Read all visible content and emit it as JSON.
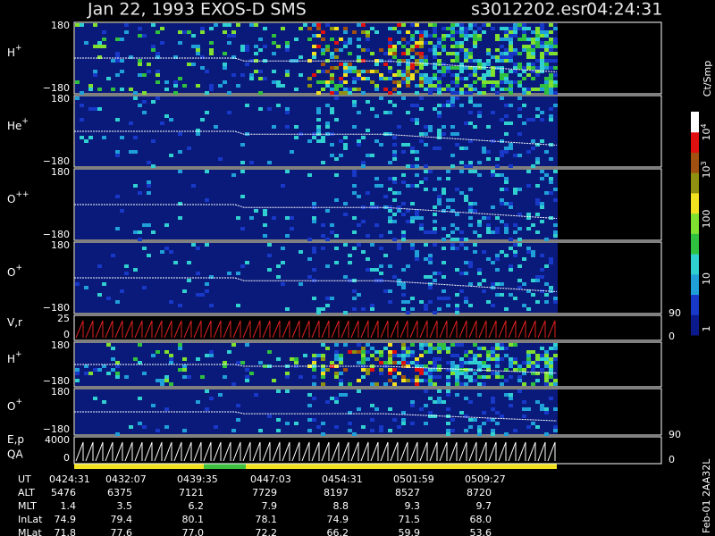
{
  "header": {
    "title": "Jan 22, 1993   EXOS-D SMS",
    "file": "s3012202.esr",
    "time": "04:24:31"
  },
  "panels": [
    {
      "label": "H",
      "sup": "+",
      "ticks": [
        "180",
        "−180"
      ]
    },
    {
      "label": "He",
      "sup": "+",
      "ticks": [
        "180",
        "−180"
      ]
    },
    {
      "label": "O",
      "sup": "++",
      "ticks": [
        "180",
        "−180"
      ]
    },
    {
      "label": "O",
      "sup": "+",
      "ticks": [
        "180",
        "−180"
      ]
    },
    {
      "label": "V,r",
      "ticks": [
        "25",
        "0"
      ],
      "right_ticks": [
        "90",
        "0"
      ]
    },
    {
      "label": "H",
      "sup": "+",
      "ticks": [
        "180",
        "−180"
      ]
    },
    {
      "label": "O",
      "sup": "+",
      "ticks": [
        "180",
        "−180"
      ]
    },
    {
      "label": "E,p",
      "label2": "QA",
      "ticks": [
        "4000",
        "0"
      ],
      "right_ticks": [
        "90",
        "0"
      ]
    }
  ],
  "colorbar": {
    "label": "Ct/Smp",
    "ticks": [
      {
        "text": "10",
        "sup": "4"
      },
      {
        "text": "10",
        "sup": "3"
      },
      {
        "text": "100"
      },
      {
        "text": "10"
      },
      {
        "text": "1"
      }
    ]
  },
  "table": {
    "rows": [
      {
        "name": "UT",
        "cells": [
          "0424:31",
          "0432:07",
          "0439:35",
          "0447:03",
          "0454:31",
          "0501:59",
          "0509:27"
        ]
      },
      {
        "name": "ALT",
        "cells": [
          "5476",
          "6375",
          "7121",
          "7729",
          "8197",
          "8527",
          "8720"
        ]
      },
      {
        "name": "MLT",
        "cells": [
          "1.4",
          "3.5",
          "6.2",
          "7.9",
          "8.8",
          "9.3",
          "9.7"
        ]
      },
      {
        "name": "InLat",
        "cells": [
          "74.9",
          "79.4",
          "80.1",
          "78.1",
          "74.9",
          "71.5",
          "68.0"
        ]
      },
      {
        "name": "MLat",
        "cells": [
          "71.8",
          "77.6",
          "77.0",
          "72.2",
          "66.2",
          "59.9",
          "53.6"
        ]
      }
    ]
  },
  "footer": {
    "stamp": "Feb-01 2AA32L"
  }
}
